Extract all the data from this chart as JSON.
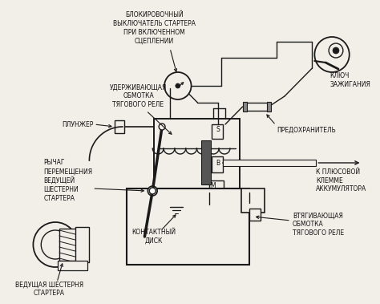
{
  "bg_color": "#f2efe9",
  "line_color": "#1a1a1a",
  "text_color": "#111111",
  "figsize": [
    4.74,
    3.79
  ],
  "dpi": 100,
  "labels": {
    "blokirovochny": "БЛОКИРОВОЧНЫЙ\nВЫКЛЮЧАТЕЛЬ СТАРТЕРА\nПРИ ВКЛЮЧЕННОМ\nСЦЕПЛЕНИИ",
    "uderzhivayushchaya": "УДЕРЖИВАЮЩАЯ\nОБМОТКА\nТЯГОВОГО РЕЛЕ",
    "plunzher": "ПЛУНЖЕР",
    "rychag": "РЫЧАГ\nПЕРЕМЕЩЕНИЯ\nВЕДУЩЕЙ\nШЕСТЕРНИ\nСТАРТЕРА",
    "vedushchaya": "ВЕДУЩАЯ ШЕСТЕРНЯ\nСТАРТЕРА",
    "kontaktny": "КОНТАКТНЫЙ\nДИСК",
    "vtyagivayushchaya": "ВТЯГИВАЮЩАЯ\nОБМОТКА\nТЯГОВОГО РЕЛЕ",
    "klyuch": "КЛЮЧ\nЗАЖИГАНИЯ",
    "predokhranitel": "ПРЕДОХРАНИТЕЛЬ",
    "k_plyusovoy": "К ПЛЮСОВОЙ\nКЛЕММЕ\nАККУМУЛЯТОРА",
    "S": "S",
    "B": "B",
    "M": "M"
  }
}
